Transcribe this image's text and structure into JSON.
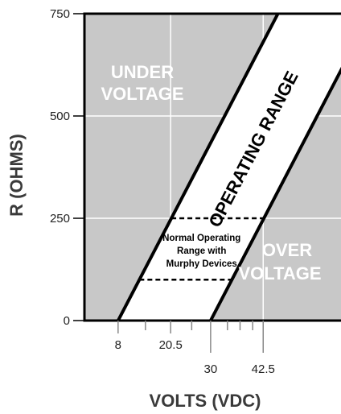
{
  "chart_data": {
    "type": "area",
    "xlabel": "VOLTS (VDC)",
    "ylabel": "R (OHMS)",
    "xlim": [
      0,
      61
    ],
    "ylim": [
      0,
      750
    ],
    "yticks": [
      "0",
      "250",
      "500",
      "750"
    ],
    "xtick_labels": [
      {
        "value": 8,
        "label": "8",
        "row": "upper"
      },
      {
        "value": 20.5,
        "label": "20.5",
        "row": "upper"
      },
      {
        "value": 30,
        "label": "30",
        "row": "lower"
      },
      {
        "value": 42.5,
        "label": "42.5",
        "row": "lower"
      }
    ],
    "minor_xticks": [
      14.5,
      25.5,
      34,
      37,
      40
    ],
    "gridlines_x": [
      20.5,
      42.5
    ],
    "gridlines_y": [
      250,
      500
    ],
    "boundaries": [
      {
        "name": "lower boundary",
        "points": [
          [
            8,
            0
          ],
          [
            46,
            750
          ]
        ]
      },
      {
        "name": "upper boundary",
        "points": [
          [
            30,
            0
          ],
          [
            68,
            750
          ]
        ]
      }
    ],
    "regions": {
      "under": "UNDER\nVOLTAGE",
      "over": "OVER\nVOLTAGE",
      "band": "OPERATING RANGE"
    },
    "murphy_range": {
      "r_min": 100,
      "r_max": 250,
      "note": [
        "Normal Operating",
        "Range with",
        "Murphy Devices"
      ]
    },
    "colors": {
      "region_fill": "#c8c8c8",
      "band_fill": "#ffffff",
      "line": "#000000",
      "grid": "#ffffff"
    }
  }
}
